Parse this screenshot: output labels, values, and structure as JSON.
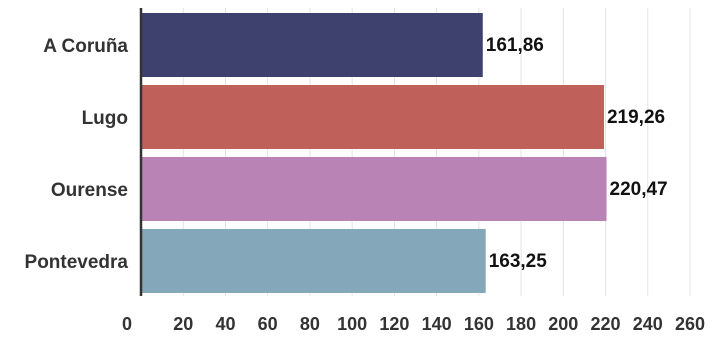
{
  "chart_data": {
    "type": "bar",
    "orientation": "horizontal",
    "categories": [
      "A Coruña",
      "Lugo",
      "Ourense",
      "Pontevedra"
    ],
    "values": [
      161.86,
      219.26,
      220.47,
      163.25
    ],
    "value_labels": [
      "161,86",
      "219,26",
      "220,47",
      "163,25"
    ],
    "colors": [
      "#3e406e",
      "#bf615a",
      "#b983b6",
      "#84a8b9"
    ],
    "x_ticks": [
      "0",
      "20",
      "40",
      "60",
      "80",
      "100",
      "120",
      "140",
      "160",
      "180",
      "200",
      "220",
      "240",
      "260"
    ],
    "xlim": [
      0,
      260
    ],
    "grid": true,
    "legend": "none"
  }
}
